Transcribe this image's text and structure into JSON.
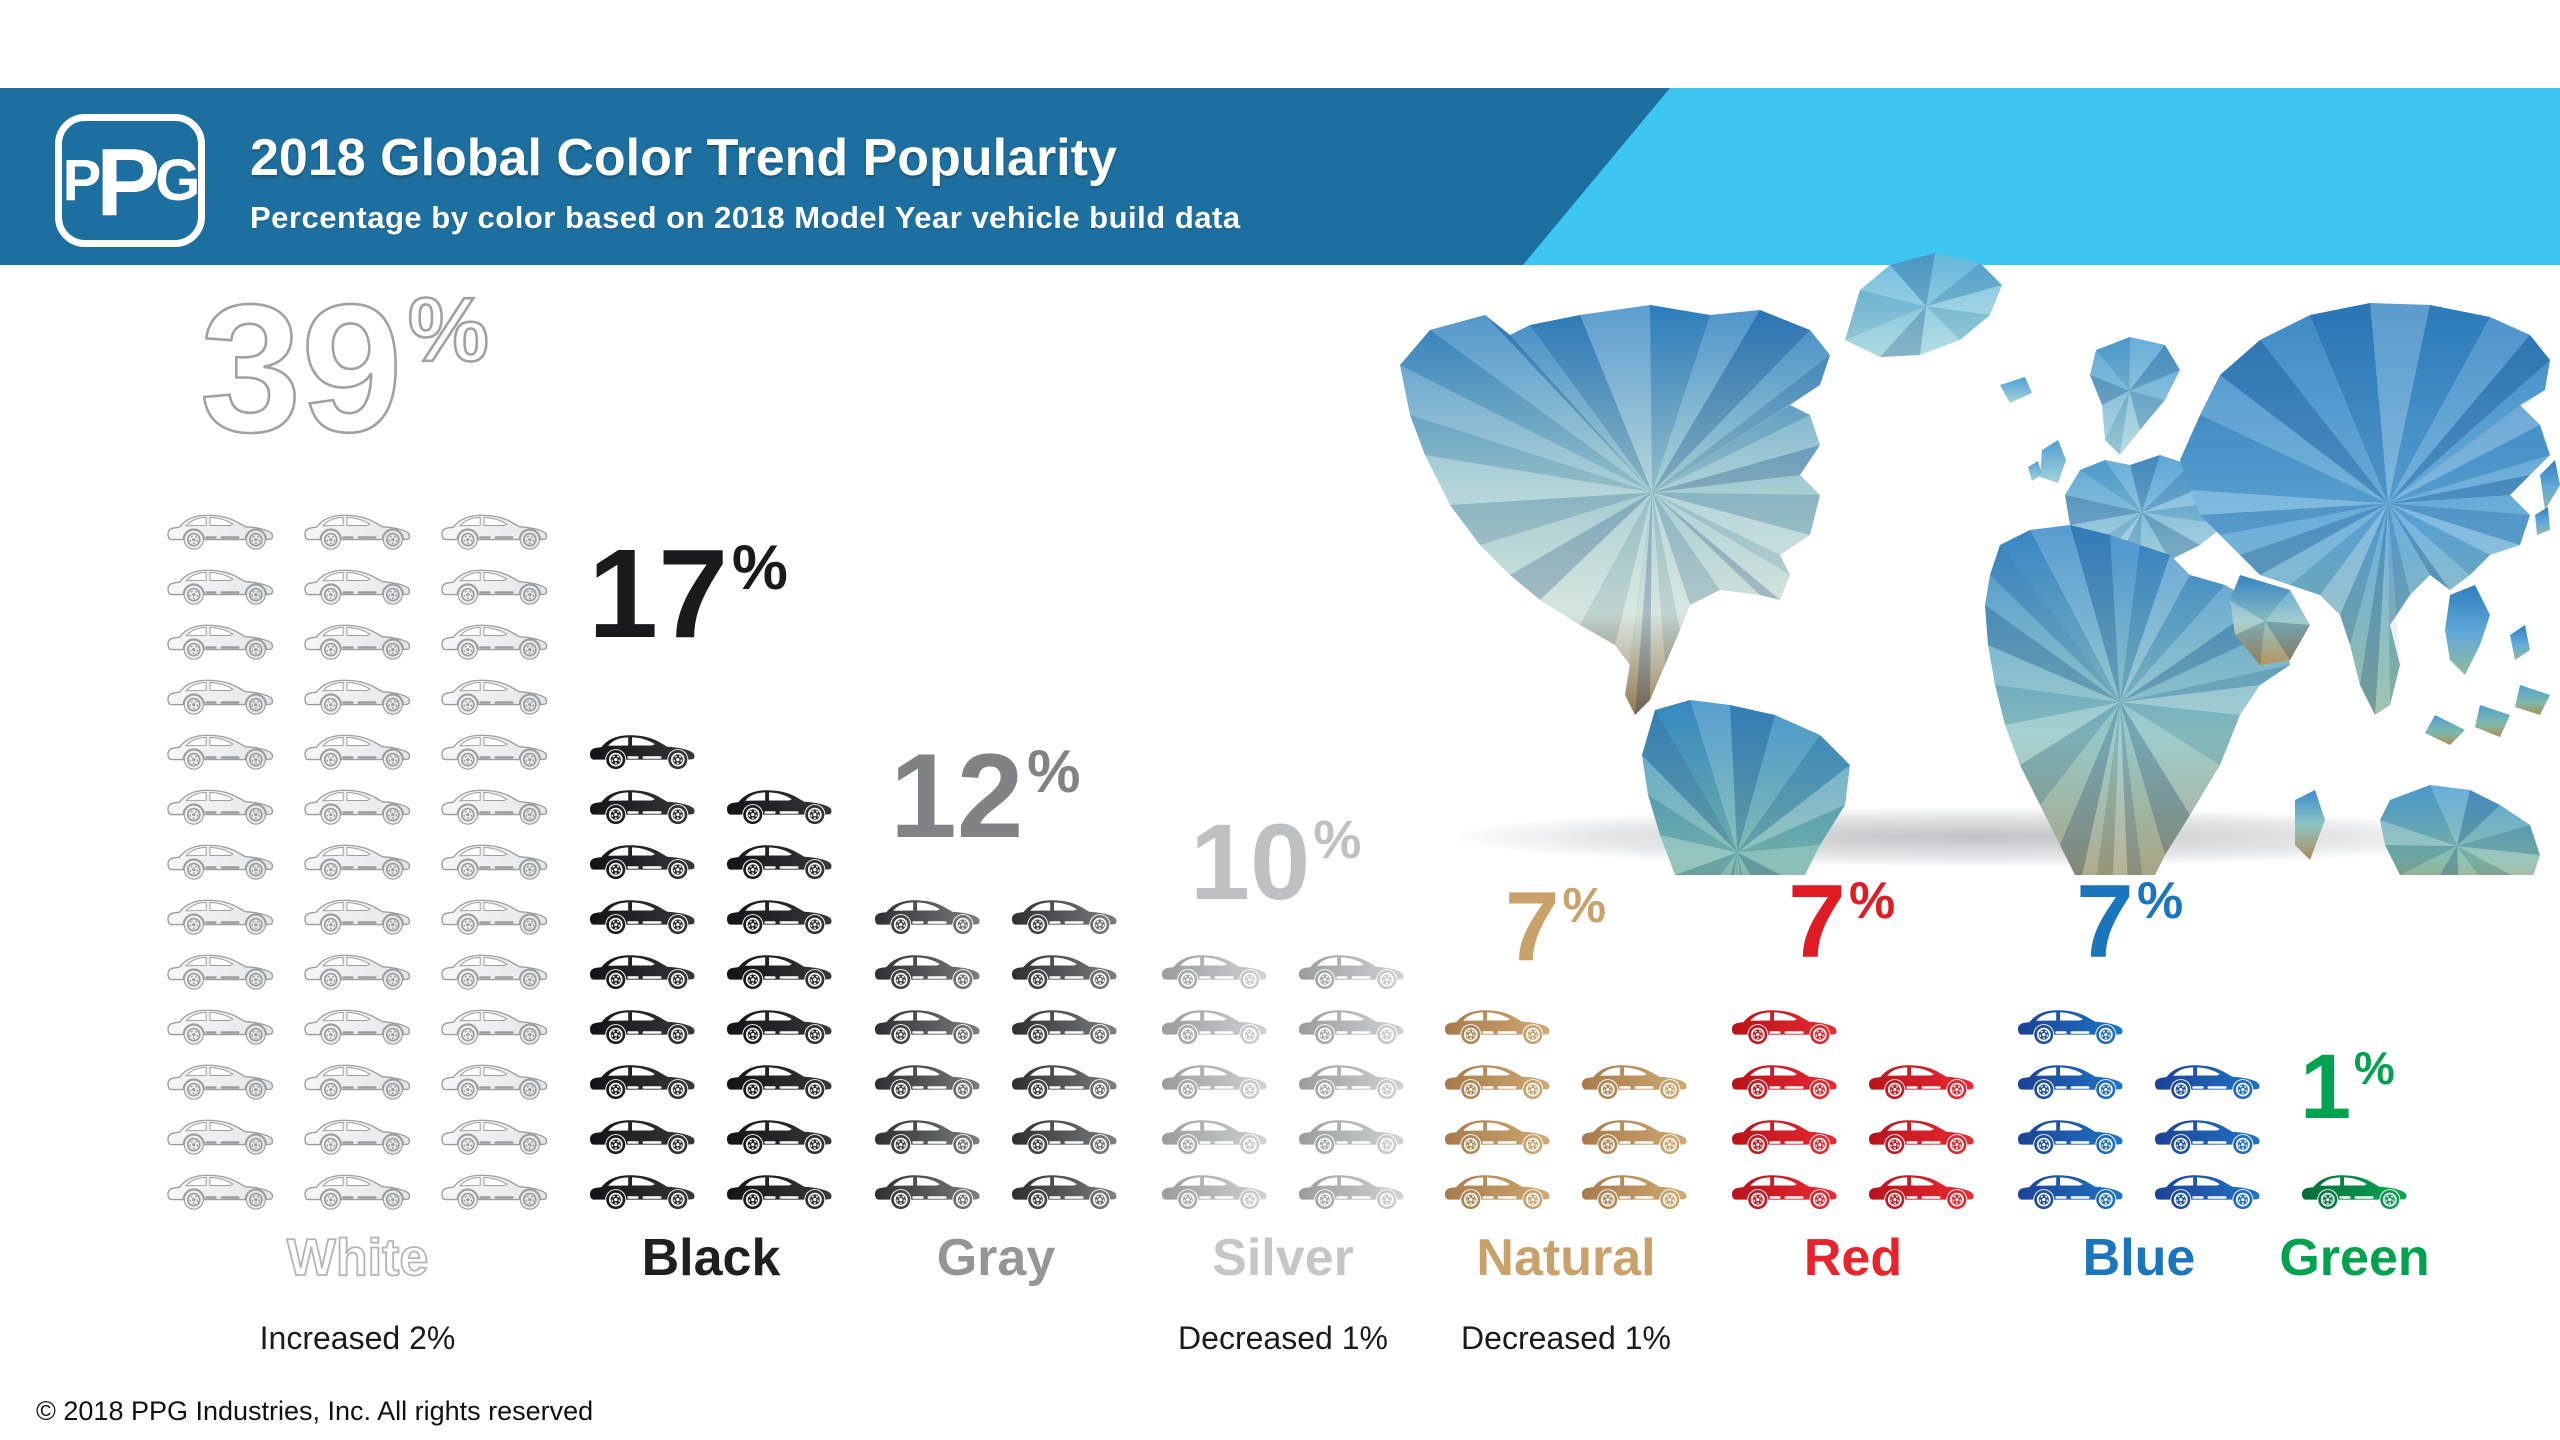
{
  "header": {
    "logo_text": "PPG",
    "title": "2018 Global Color Trend Popularity",
    "subtitle": "Percentage by color based on 2018 Model Year vehicle build data",
    "banner_color": "#1c6f9f",
    "accent_color": "#3ec6f2"
  },
  "map": {
    "description": "low-poly world map illustration in blue, teal and tan facets with soft ground shadow"
  },
  "chart_data": {
    "type": "pictogram",
    "icon": "car-side-icon",
    "title": "2018 Global Color Trend Popularity",
    "subtitle": "Percentage by color based on 2018 Model Year vehicle build data",
    "unit": "%",
    "categories": [
      "White",
      "Black",
      "Gray",
      "Silver",
      "Natural",
      "Red",
      "Blue",
      "Green"
    ],
    "values": [
      39,
      17,
      12,
      10,
      7,
      7,
      7,
      1
    ],
    "columns": [
      {
        "label": "White",
        "value": "39",
        "percent_sign": "%",
        "note": "Increased 2%",
        "cars_per_row": 3,
        "number_color": "outline",
        "label_color": "outline",
        "car_start": "#f7f7f8",
        "car_end": "#e4e5e7",
        "car_outline": "#9b9da0"
      },
      {
        "label": "Black",
        "value": "17",
        "percent_sign": "%",
        "note": "",
        "cars_per_row": 2,
        "number_color": "#1a1a1c",
        "label_color": "#221e1f",
        "car_start": "#121214",
        "car_end": "#3a3a3e",
        "car_outline": ""
      },
      {
        "label": "Gray",
        "value": "12",
        "percent_sign": "%",
        "note": "",
        "cars_per_row": 2,
        "number_color": "#808285",
        "label_color": "#939598",
        "car_start": "#2b2b2d",
        "car_end": "#808285",
        "car_outline": ""
      },
      {
        "label": "Silver",
        "value": "10",
        "percent_sign": "%",
        "note": "Decreased 1%",
        "cars_per_row": 2,
        "number_color": "#bec0c2",
        "label_color": "#c4c6c8",
        "car_start": "#97999c",
        "car_end": "#d4d5d6",
        "car_outline": ""
      },
      {
        "label": "Natural",
        "value": "7",
        "percent_sign": "%",
        "note": "Decreased 1%",
        "cars_per_row": 2,
        "number_color": "#c9a26b",
        "label_color": "#c9a26b",
        "car_start": "#a5784a",
        "car_end": "#d2ac74",
        "car_outline": ""
      },
      {
        "label": "Red",
        "value": "7",
        "percent_sign": "%",
        "note": "",
        "cars_per_row": 2,
        "number_color": "#e01b24",
        "label_color": "#e8232b",
        "car_start": "#b5121b",
        "car_end": "#ee2b33",
        "car_outline": ""
      },
      {
        "label": "Blue",
        "value": "7",
        "percent_sign": "%",
        "note": "",
        "cars_per_row": 2,
        "number_color": "#1b75bc",
        "label_color": "#1b75bc",
        "car_start": "#1d3f94",
        "car_end": "#1e78c8",
        "car_outline": ""
      },
      {
        "label": "Green",
        "value": "1",
        "percent_sign": "%",
        "note": "",
        "cars_per_row": 1,
        "number_color": "#00a24f",
        "label_color": "#00a24f",
        "car_start": "#046a38",
        "car_end": "#0caa54",
        "car_outline": ""
      }
    ],
    "legend_position": "none",
    "grid": false
  },
  "footer": {
    "copyright": "© 2018 PPG Industries, Inc. All rights reserved"
  }
}
